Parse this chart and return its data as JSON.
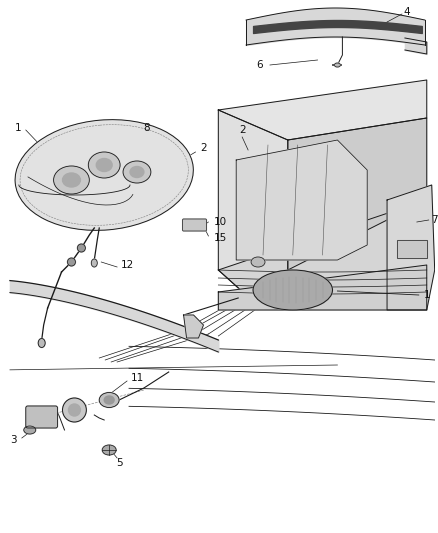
{
  "background_color": "#ffffff",
  "fig_width": 4.38,
  "fig_height": 5.33,
  "dpi": 100,
  "line_color": "#1a1a1a",
  "label_color": "#111111",
  "label_fontsize": 7.5,
  "gray_light": "#d8d8d8",
  "gray_mid": "#aaaaaa",
  "gray_dark": "#555555",
  "gray_fill": "#e8e8e8",
  "hatch_color": "#888888"
}
